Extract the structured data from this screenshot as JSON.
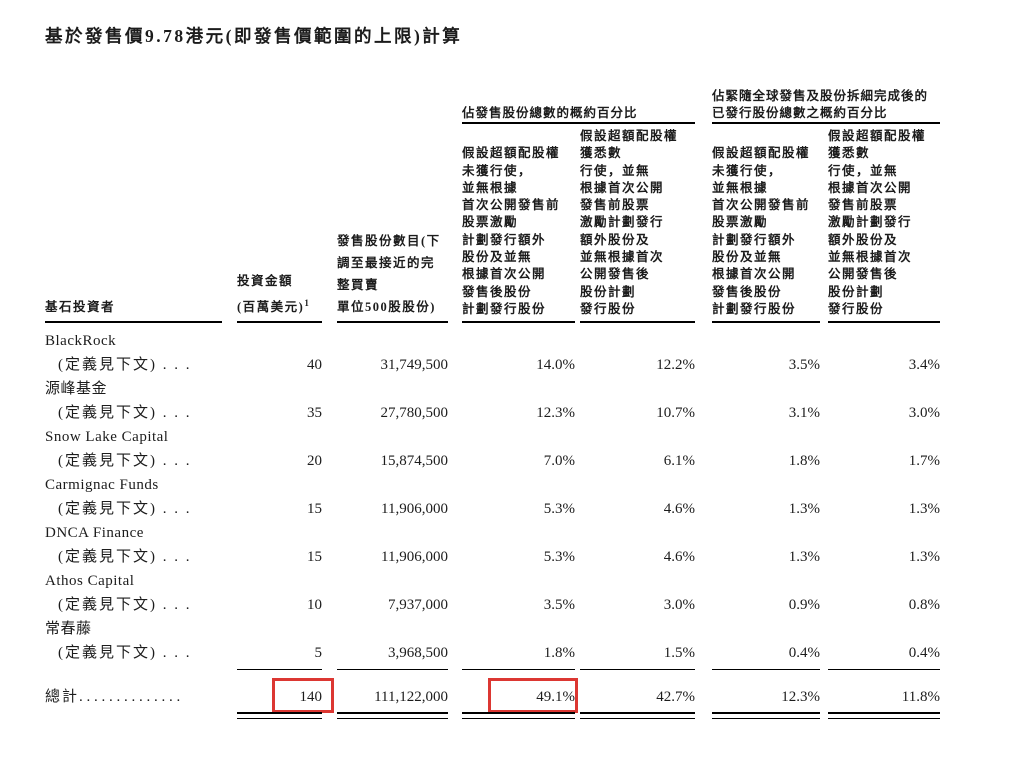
{
  "title": "基於發售價9.78港元(即發售價範圍的上限)計算",
  "colors": {
    "highlight": "#dc3732"
  },
  "table": {
    "headers": {
      "investor": "基石投資者",
      "investment_line1": "投資金額",
      "investment_line2": "(百萬美元)",
      "investment_sup": "1",
      "shares": "發售股份數目(下\n調至最接近的完\n整買賣\n單位500股股份)",
      "group1_title": "佔發售股份總數的概約百分比",
      "group2_title": "佔緊隨全球發售及股份拆細完成後的\n已發行股份總數之概約百分比",
      "subcol_no_exercise": "假設超額配股權\n未獲行使，\n並無根據\n首次公開發售前\n股票激勵\n計劃發行額外\n股份及並無\n根據首次公開\n發售後股份\n計劃發行股份",
      "subcol_full_exercise": "假設超額配股權\n獲悉數\n行使，並無\n根據首次公開\n發售前股票\n激勵計劃發行\n額外股份及\n並無根據首次\n公開發售後\n股份計劃\n發行股份"
    },
    "rows": [
      {
        "name": "BlackRock",
        "def": "(定義見下文) . . .",
        "amount": "40",
        "shares": "31,749,500",
        "p1": "14.0%",
        "p2": "12.2%",
        "p3": "3.5%",
        "p4": "3.4%"
      },
      {
        "name": "源峰基金",
        "def": "(定義見下文) . . .",
        "amount": "35",
        "shares": "27,780,500",
        "p1": "12.3%",
        "p2": "10.7%",
        "p3": "3.1%",
        "p4": "3.0%"
      },
      {
        "name": "Snow Lake Capital",
        "def": "(定義見下文) . . .",
        "amount": "20",
        "shares": "15,874,500",
        "p1": "7.0%",
        "p2": "6.1%",
        "p3": "1.8%",
        "p4": "1.7%"
      },
      {
        "name": "Carmignac Funds",
        "def": "(定義見下文) . . .",
        "amount": "15",
        "shares": "11,906,000",
        "p1": "5.3%",
        "p2": "4.6%",
        "p3": "1.3%",
        "p4": "1.3%"
      },
      {
        "name": "DNCA Finance",
        "def": "(定義見下文) . . .",
        "amount": "15",
        "shares": "11,906,000",
        "p1": "5.3%",
        "p2": "4.6%",
        "p3": "1.3%",
        "p4": "1.3%"
      },
      {
        "name": "Athos Capital",
        "def": "(定義見下文) . . .",
        "amount": "10",
        "shares": "7,937,000",
        "p1": "3.5%",
        "p2": "3.0%",
        "p3": "0.9%",
        "p4": "0.8%"
      },
      {
        "name": "常春藤",
        "def": "(定義見下文) . . .",
        "amount": "5",
        "shares": "3,968,500",
        "p1": "1.8%",
        "p2": "1.5%",
        "p3": "0.4%",
        "p4": "0.4%"
      }
    ],
    "total": {
      "label": "總計",
      "dots": ". . . . . . . . . . . . . .",
      "amount": "140",
      "shares": "111,122,000",
      "p1": "49.1%",
      "p2": "42.7%",
      "p3": "12.3%",
      "p4": "11.8%"
    }
  }
}
